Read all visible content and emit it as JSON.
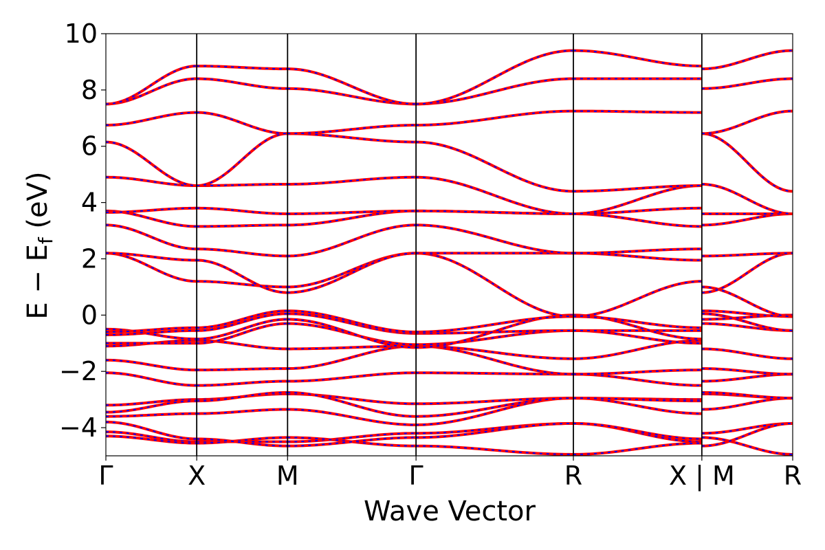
{
  "chart_data": {
    "type": "line",
    "xlabel": "Wave Vector",
    "ylabel": "E − E",
    "ylabel_sub": "f",
    "ylabel_unit": " (eV)",
    "ylim": [
      -5,
      10
    ],
    "yticks": [
      {
        "value": -4,
        "label": "−4"
      },
      {
        "value": -2,
        "label": "−2"
      },
      {
        "value": 0,
        "label": "0"
      },
      {
        "value": 2,
        "label": "2"
      },
      {
        "value": 4,
        "label": "4"
      },
      {
        "value": 6,
        "label": "6"
      },
      {
        "value": 8,
        "label": "8"
      },
      {
        "value": 10,
        "label": "10"
      }
    ],
    "kpoint_positions": [
      0,
      0.5,
      1.0,
      1.707,
      2.573,
      3.28,
      3.78
    ],
    "kpoint_labels": [
      "Γ",
      "X",
      "M",
      "Γ",
      "R",
      "X | M",
      "R"
    ],
    "grid": false,
    "line_colors": {
      "primary": "#ff0000",
      "overlay": "#0000ff"
    },
    "bands": [
      [
        -4.15,
        -4.5,
        -4.5,
        -4.2,
        -3.85,
        -4.5,
        -4.2,
        -3.85
      ],
      [
        -4.3,
        -4.55,
        -4.35,
        -4.65,
        -4.95,
        -4.55,
        -4.35,
        -4.95
      ],
      [
        -3.8,
        -4.4,
        -4.65,
        -4.35,
        -3.85,
        -4.4,
        -4.65,
        -3.85
      ],
      [
        -3.6,
        -3.5,
        -3.35,
        -3.9,
        -2.95,
        -3.5,
        -3.35,
        -2.95
      ],
      [
        -3.2,
        -3.0,
        -2.8,
        -3.15,
        -2.95,
        -3.0,
        -2.8,
        -2.95
      ],
      [
        -3.45,
        -3.05,
        -2.75,
        -3.6,
        -2.95,
        -3.05,
        -2.75,
        -2.95
      ],
      [
        -2.05,
        -2.5,
        -2.35,
        -2.05,
        -2.1,
        -2.5,
        -2.35,
        -2.1
      ],
      [
        -1.6,
        -1.95,
        -1.9,
        -1.1,
        -2.1,
        -1.95,
        -1.9,
        -2.1
      ],
      [
        -1.1,
        -0.9,
        -1.2,
        -1.1,
        -1.55,
        -0.9,
        -1.2,
        -1.55
      ],
      [
        -1.0,
        -1.0,
        -0.3,
        -1.05,
        -0.55,
        -1.0,
        -0.3,
        -0.55
      ],
      [
        -0.7,
        -0.55,
        0.05,
        -0.65,
        -0.55,
        -0.55,
        0.05,
        -0.55
      ],
      [
        -0.5,
        -0.85,
        -0.15,
        -1.15,
        0.0,
        -0.85,
        -0.15,
        0.0
      ],
      [
        -0.6,
        -0.45,
        0.15,
        -0.6,
        -0.05,
        -0.45,
        0.15,
        -0.05
      ],
      [
        2.2,
        1.2,
        1.0,
        2.2,
        -0.05,
        1.2,
        1.0,
        -0.05
      ],
      [
        2.2,
        1.95,
        0.8,
        2.2,
        2.2,
        1.95,
        0.8,
        2.2
      ],
      [
        3.2,
        2.35,
        2.1,
        3.2,
        2.2,
        2.35,
        2.1,
        2.2
      ],
      [
        3.7,
        3.15,
        3.2,
        3.7,
        3.6,
        3.15,
        3.2,
        3.6
      ],
      [
        3.65,
        3.8,
        3.6,
        3.7,
        3.6,
        3.8,
        3.6,
        3.6
      ],
      [
        4.9,
        4.6,
        4.65,
        4.9,
        3.6,
        4.6,
        4.65,
        3.6
      ],
      [
        6.15,
        4.6,
        6.45,
        6.15,
        4.4,
        4.6,
        6.45,
        4.4
      ],
      [
        6.75,
        7.2,
        6.45,
        6.75,
        7.25,
        7.2,
        6.45,
        7.25
      ],
      [
        7.5,
        8.4,
        8.05,
        7.5,
        8.4,
        8.4,
        8.05,
        8.4
      ],
      [
        7.5,
        8.85,
        8.75,
        7.5,
        9.4,
        8.85,
        8.75,
        9.4
      ]
    ]
  }
}
